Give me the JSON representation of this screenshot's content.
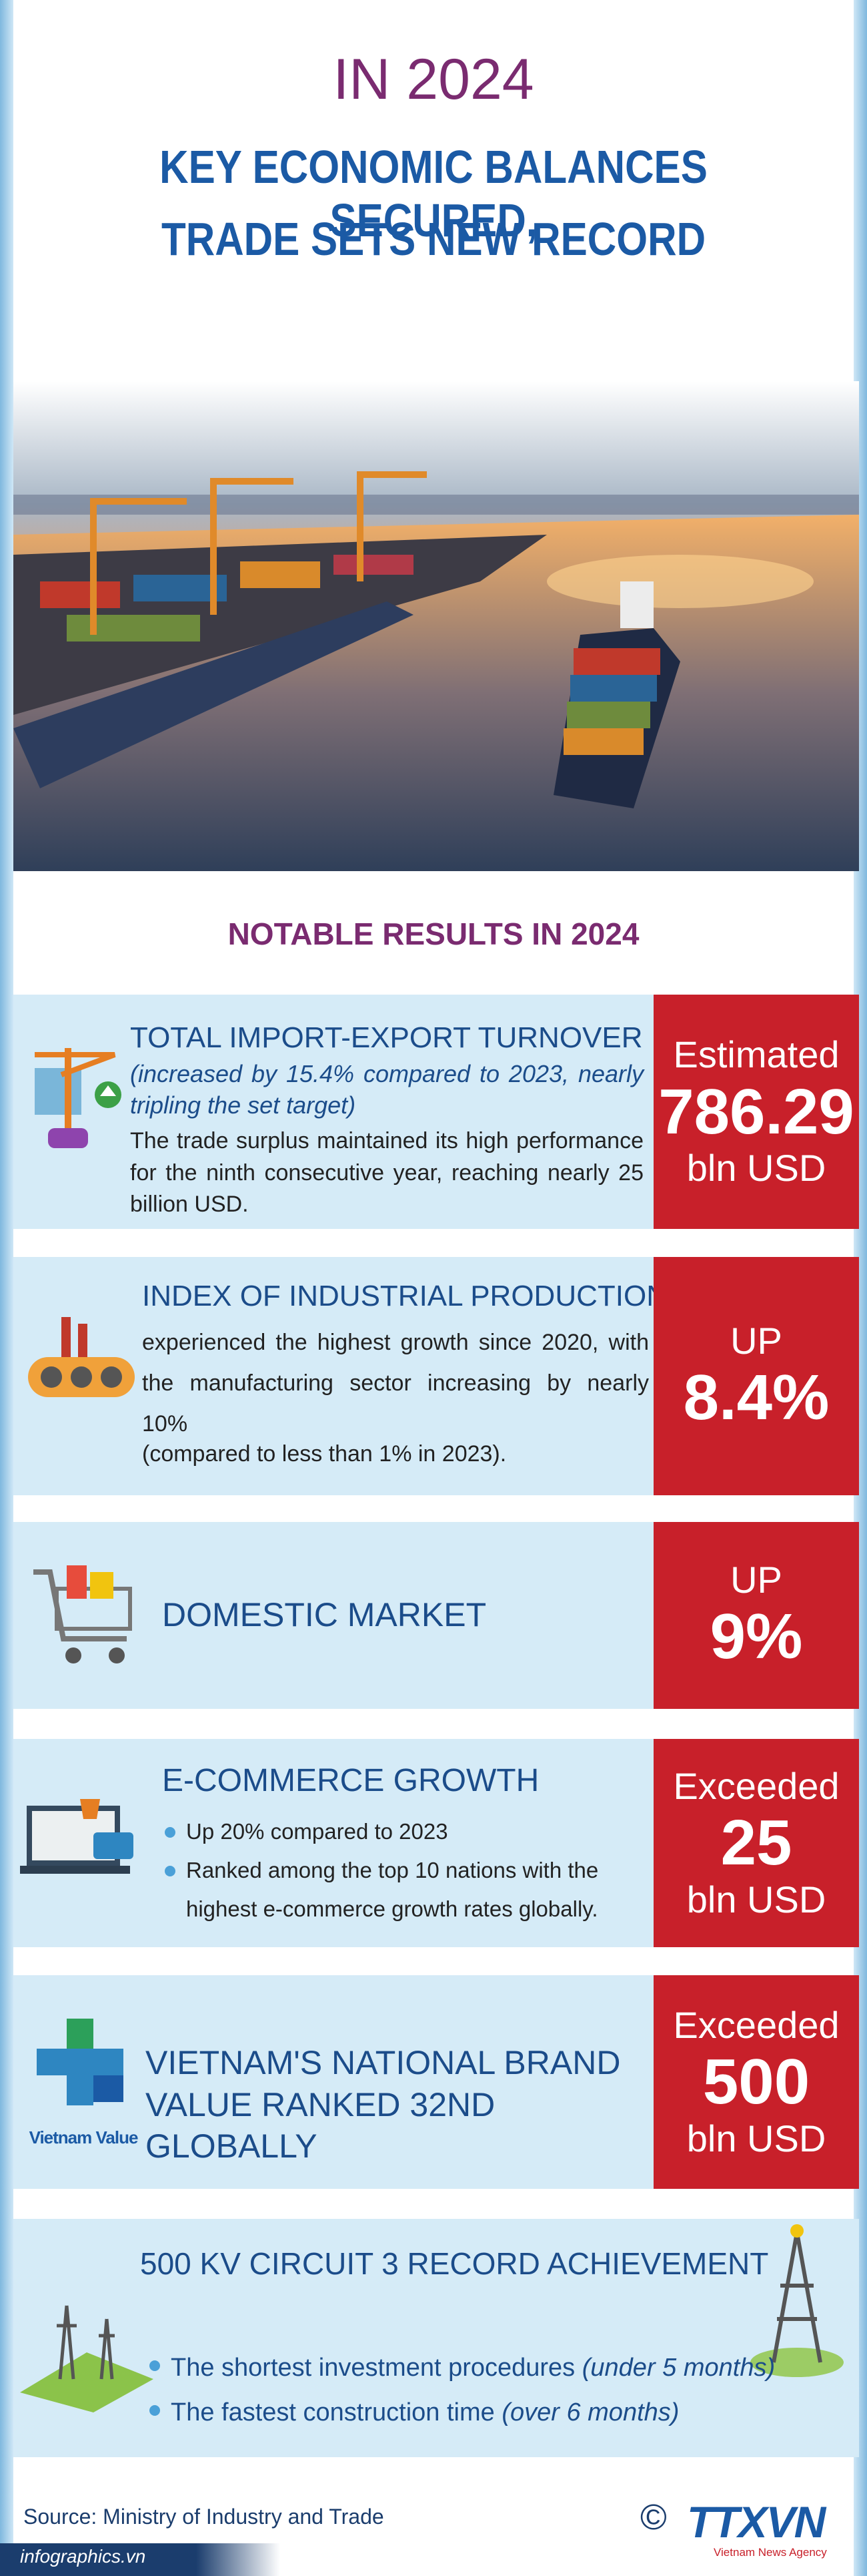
{
  "header": {
    "kicker": "IN 2024",
    "title": [
      "KEY ECONOMIC BALANCES SECURED,",
      "TRADE SETS NEW RECORD"
    ]
  },
  "section_title": "NOTABLE RESULTS IN 2024",
  "items": [
    {
      "title": "TOTAL IMPORT-EXPORT TURNOVER",
      "note": "(increased by 15.4% compared to 2023, nearly tripling the set target)",
      "body": "The trade surplus maintained its high performance for the ninth consecutive year, reaching nearly 25 billion USD.",
      "badge": [
        "Estimated",
        "786.29",
        "bln USD"
      ]
    },
    {
      "title": "INDEX OF INDUSTRIAL PRODUCTION",
      "body": "experienced the highest growth since 2020, with the manufacturing sector increasing by nearly 10%",
      "note": "(compared to less than 1% in 2023).",
      "badge": [
        "UP",
        "8.4%"
      ]
    },
    {
      "title": "DOMESTIC MARKET",
      "badge": [
        "UP",
        "9%"
      ]
    },
    {
      "title": "E-COMMERCE GROWTH",
      "bullets": [
        "Up 20% compared to 2023",
        "Ranked among the top 10 nations with the highest e-commerce growth rates globally."
      ],
      "badge": [
        "Exceeded",
        "25",
        "bln USD"
      ]
    },
    {
      "title": "VIETNAM'S NATIONAL BRAND VALUE RANKED 32ND GLOBALLY",
      "logo": "Vietnam Value",
      "badge": [
        "Exceeded",
        "500",
        "bln USD"
      ]
    },
    {
      "title": "500 KV CIRCUIT 3 RECORD ACHIEVEMENT",
      "bullets": [
        [
          "The shortest investment procedures",
          "(under 5 months)"
        ],
        [
          "The fastest construction time",
          "(over 6 months)"
        ]
      ]
    }
  ],
  "footer": {
    "source": "Source: Ministry of Industry and Trade",
    "site": "infographics.vn",
    "copyright": "©",
    "agency": "TTXVN",
    "agency_sub": "Vietnam News Agency"
  }
}
